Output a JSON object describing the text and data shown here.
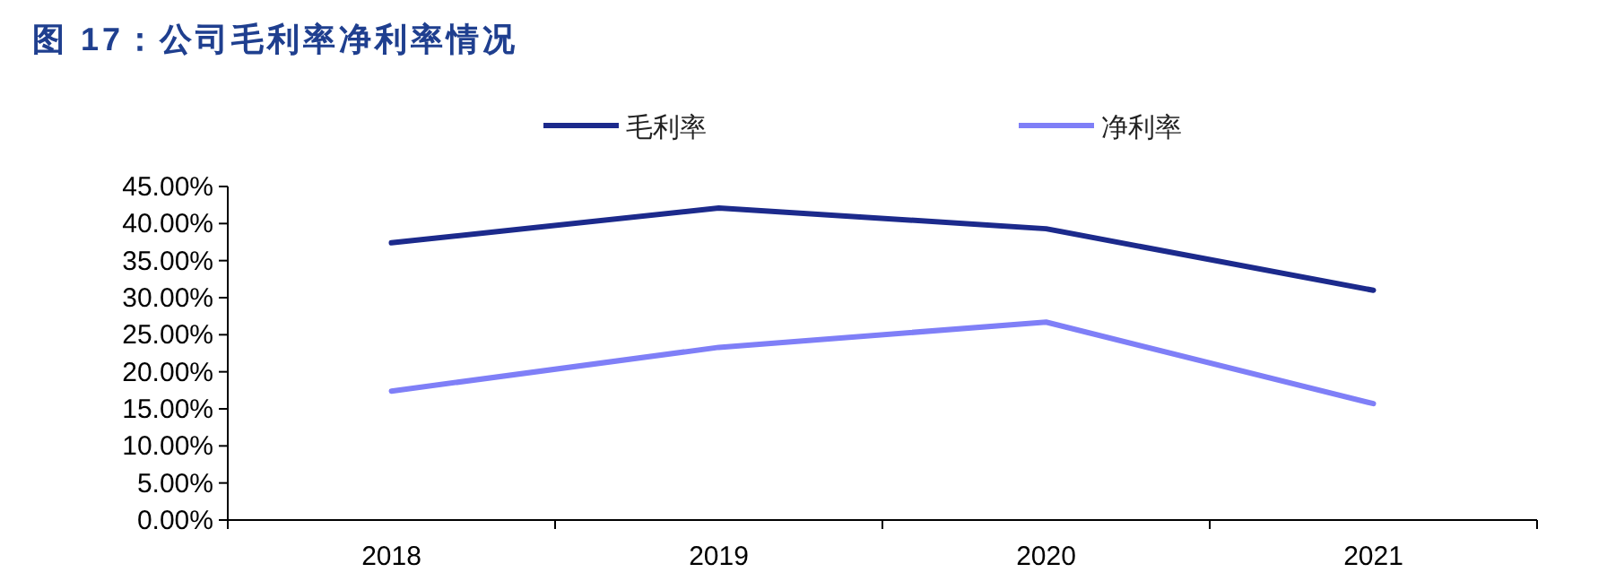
{
  "chart_data": {
    "type": "line",
    "title": "图 17：公司毛利率净利率情况",
    "categories": [
      "2018",
      "2019",
      "2020",
      "2021"
    ],
    "series": [
      {
        "name": "毛利率",
        "color": "#1c2a8c",
        "values": [
          37.4,
          42.1,
          39.3,
          31.0
        ]
      },
      {
        "name": "净利率",
        "color": "#7f7ff7",
        "values": [
          17.4,
          23.3,
          26.7,
          15.7
        ]
      }
    ],
    "ylim": [
      0,
      45
    ],
    "yticks": [
      {
        "value": 0,
        "label": "0.00%"
      },
      {
        "value": 5,
        "label": "5.00%"
      },
      {
        "value": 10,
        "label": "10.00%"
      },
      {
        "value": 15,
        "label": "15.00%"
      },
      {
        "value": 20,
        "label": "20.00%"
      },
      {
        "value": 25,
        "label": "25.00%"
      },
      {
        "value": 30,
        "label": "30.00%"
      },
      {
        "value": 35,
        "label": "35.00%"
      },
      {
        "value": 40,
        "label": "40.00%"
      },
      {
        "value": 45,
        "label": "45.00%"
      }
    ],
    "legend": "top",
    "grid": false,
    "marker": "none",
    "line_style": "solid"
  }
}
